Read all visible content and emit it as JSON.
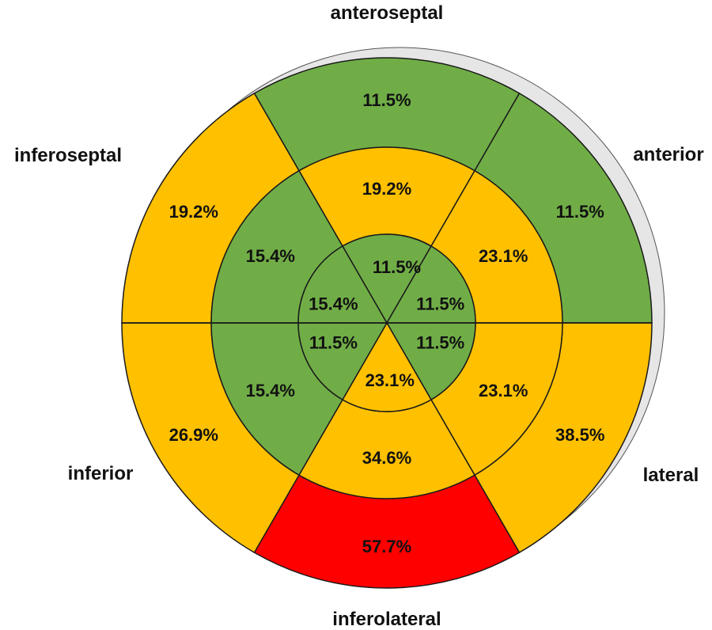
{
  "chart_data": {
    "type": "bullseye",
    "colors": {
      "green": "#70AD47",
      "yellow": "#FFC000",
      "red": "#FF0000",
      "shadow": "#E6E6E6"
    },
    "wall_labels": [
      {
        "id": "anteroseptal",
        "text": "anteroseptal"
      },
      {
        "id": "anterior",
        "text": "anterior"
      },
      {
        "id": "lateral",
        "text": "lateral"
      },
      {
        "id": "inferolateral",
        "text": "inferolateral"
      },
      {
        "id": "inferior",
        "text": "inferior"
      },
      {
        "id": "inferoseptal",
        "text": "inferoseptal"
      }
    ],
    "rings": [
      {
        "name": "outer",
        "segments": [
          {
            "value": "11.5%",
            "color": "green"
          },
          {
            "value": "11.5%",
            "color": "green"
          },
          {
            "value": "38.5%",
            "color": "yellow"
          },
          {
            "value": "57.7%",
            "color": "red"
          },
          {
            "value": "26.9%",
            "color": "yellow"
          },
          {
            "value": "19.2%",
            "color": "yellow"
          }
        ]
      },
      {
        "name": "middle",
        "segments": [
          {
            "value": "19.2%",
            "color": "yellow"
          },
          {
            "value": "23.1%",
            "color": "yellow"
          },
          {
            "value": "23.1%",
            "color": "yellow"
          },
          {
            "value": "34.6%",
            "color": "yellow"
          },
          {
            "value": "15.4%",
            "color": "green"
          },
          {
            "value": "15.4%",
            "color": "green"
          }
        ]
      },
      {
        "name": "inner",
        "segments": [
          {
            "value": "11.5%",
            "color": "green"
          },
          {
            "value": "11.5%",
            "color": "green"
          },
          {
            "value": "11.5%",
            "color": "green"
          },
          {
            "value": "23.1%",
            "color": "yellow"
          },
          {
            "value": "11.5%",
            "color": "green"
          },
          {
            "value": "15.4%",
            "color": "green"
          }
        ]
      }
    ]
  }
}
